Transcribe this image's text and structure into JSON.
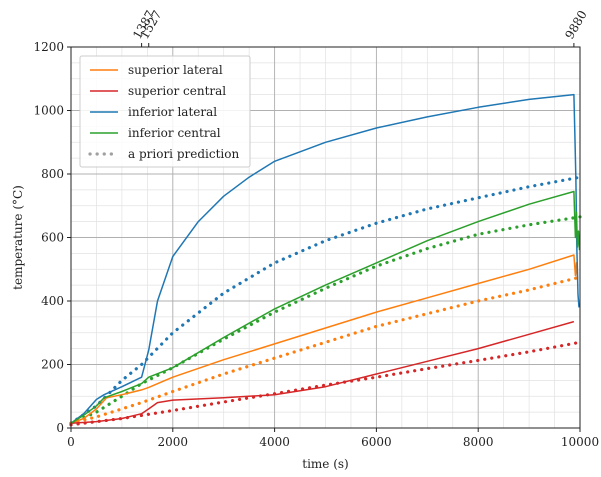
{
  "chart_data": {
    "type": "line",
    "xlabel": "time (s)",
    "ylabel": "temperature (°C)",
    "xlim": [
      0,
      10000
    ],
    "ylim": [
      0,
      1200
    ],
    "x_major_ticks": [
      0,
      2000,
      4000,
      6000,
      8000,
      10000
    ],
    "y_major_ticks": [
      0,
      200,
      400,
      600,
      800,
      1000,
      1200
    ],
    "x_minor_step": 500,
    "y_minor_step": 50,
    "grid": true,
    "top_ticks": [
      {
        "value": 1387,
        "label": "1387"
      },
      {
        "value": 1527,
        "label": "1527"
      },
      {
        "value": 9880,
        "label": "9880"
      }
    ],
    "legend_position": "upper-left",
    "series": [
      {
        "name": "superior lateral",
        "color": "#ff7f0e",
        "style": "solid",
        "points": [
          [
            0,
            15
          ],
          [
            250,
            30
          ],
          [
            500,
            60
          ],
          [
            700,
            95
          ],
          [
            1000,
            105
          ],
          [
            1387,
            120
          ],
          [
            1527,
            128
          ],
          [
            2000,
            160
          ],
          [
            3000,
            215
          ],
          [
            4000,
            265
          ],
          [
            5000,
            315
          ],
          [
            6000,
            365
          ],
          [
            7000,
            410
          ],
          [
            8000,
            455
          ],
          [
            9000,
            500
          ],
          [
            9880,
            545
          ],
          [
            9910,
            480
          ],
          [
            9930,
            520
          ],
          [
            9950,
            470
          ]
        ]
      },
      {
        "name": "superior central",
        "color": "#d62728",
        "style": "solid",
        "points": [
          [
            0,
            15
          ],
          [
            500,
            20
          ],
          [
            1000,
            30
          ],
          [
            1387,
            45
          ],
          [
            1527,
            60
          ],
          [
            1700,
            80
          ],
          [
            2000,
            88
          ],
          [
            3000,
            95
          ],
          [
            4000,
            105
          ],
          [
            5000,
            130
          ],
          [
            6000,
            170
          ],
          [
            7000,
            210
          ],
          [
            8000,
            250
          ],
          [
            9000,
            295
          ],
          [
            9880,
            335
          ]
        ]
      },
      {
        "name": "inferior lateral",
        "color": "#1f77b4",
        "style": "solid",
        "points": [
          [
            0,
            15
          ],
          [
            250,
            45
          ],
          [
            500,
            90
          ],
          [
            650,
            105
          ],
          [
            1000,
            130
          ],
          [
            1387,
            160
          ],
          [
            1527,
            245
          ],
          [
            1700,
            400
          ],
          [
            2000,
            540
          ],
          [
            2500,
            650
          ],
          [
            3000,
            730
          ],
          [
            3500,
            790
          ],
          [
            4000,
            840
          ],
          [
            5000,
            900
          ],
          [
            6000,
            945
          ],
          [
            7000,
            980
          ],
          [
            8000,
            1010
          ],
          [
            9000,
            1035
          ],
          [
            9880,
            1050
          ],
          [
            9900,
            920
          ],
          [
            9920,
            780
          ],
          [
            9940,
            560
          ],
          [
            9960,
            420
          ],
          [
            9980,
            380
          ]
        ]
      },
      {
        "name": "inferior central",
        "color": "#2ca02c",
        "style": "solid",
        "points": [
          [
            0,
            15
          ],
          [
            250,
            40
          ],
          [
            500,
            70
          ],
          [
            650,
            95
          ],
          [
            1000,
            115
          ],
          [
            1387,
            140
          ],
          [
            1527,
            160
          ],
          [
            2000,
            190
          ],
          [
            3000,
            285
          ],
          [
            4000,
            375
          ],
          [
            5000,
            450
          ],
          [
            6000,
            520
          ],
          [
            7000,
            590
          ],
          [
            8000,
            650
          ],
          [
            9000,
            705
          ],
          [
            9880,
            745
          ],
          [
            9910,
            600
          ],
          [
            9930,
            680
          ],
          [
            9950,
            570
          ],
          [
            9970,
            620
          ],
          [
            9990,
            560
          ]
        ]
      },
      {
        "name": "a priori prediction",
        "color": "#a0a0a0",
        "style": "dotted",
        "legend_only": true,
        "points": []
      },
      {
        "name": "",
        "color": "#1f77b4",
        "style": "dotted",
        "points": [
          [
            0,
            15
          ],
          [
            500,
            70
          ],
          [
            1000,
            150
          ],
          [
            1387,
            200
          ],
          [
            2000,
            300
          ],
          [
            3000,
            425
          ],
          [
            4000,
            520
          ],
          [
            5000,
            590
          ],
          [
            6000,
            645
          ],
          [
            7000,
            690
          ],
          [
            8000,
            725
          ],
          [
            9000,
            760
          ],
          [
            10000,
            790
          ]
        ]
      },
      {
        "name": "",
        "color": "#2ca02c",
        "style": "dotted",
        "points": [
          [
            0,
            15
          ],
          [
            500,
            50
          ],
          [
            1000,
            100
          ],
          [
            1387,
            140
          ],
          [
            2000,
            190
          ],
          [
            3000,
            280
          ],
          [
            4000,
            365
          ],
          [
            5000,
            440
          ],
          [
            6000,
            510
          ],
          [
            7000,
            565
          ],
          [
            8000,
            610
          ],
          [
            9000,
            640
          ],
          [
            10000,
            665
          ]
        ]
      },
      {
        "name": "",
        "color": "#ff7f0e",
        "style": "dotted",
        "points": [
          [
            0,
            15
          ],
          [
            500,
            35
          ],
          [
            1000,
            60
          ],
          [
            1387,
            80
          ],
          [
            2000,
            115
          ],
          [
            3000,
            170
          ],
          [
            4000,
            220
          ],
          [
            5000,
            270
          ],
          [
            6000,
            320
          ],
          [
            7000,
            360
          ],
          [
            8000,
            400
          ],
          [
            9000,
            435
          ],
          [
            10000,
            475
          ]
        ]
      },
      {
        "name": "",
        "color": "#d62728",
        "style": "dotted",
        "points": [
          [
            0,
            10
          ],
          [
            1000,
            30
          ],
          [
            2000,
            55
          ],
          [
            3000,
            82
          ],
          [
            4000,
            108
          ],
          [
            5000,
            135
          ],
          [
            6000,
            160
          ],
          [
            7000,
            187
          ],
          [
            8000,
            213
          ],
          [
            9000,
            240
          ],
          [
            10000,
            270
          ]
        ]
      }
    ]
  }
}
